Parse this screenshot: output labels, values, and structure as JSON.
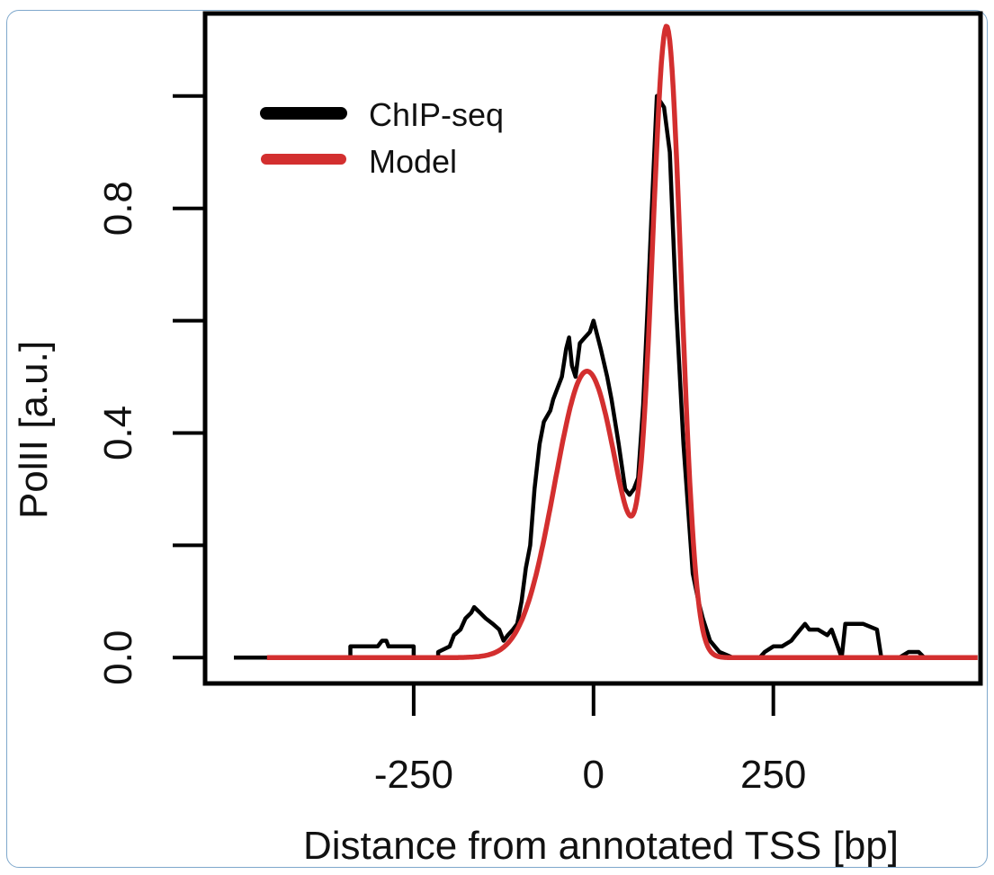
{
  "chart_data": {
    "type": "line",
    "title": "",
    "xlabel": "Distance from annotated TSS [bp]",
    "ylabel": "PolII [a.u.]",
    "xlim": [
      -540,
      538
    ],
    "ylim": [
      -0.046,
      1.147
    ],
    "x_ticks": [
      {
        "value": -250,
        "label": "-250"
      },
      {
        "value": 0,
        "label": "0"
      },
      {
        "value": 250,
        "label": "250"
      }
    ],
    "y_ticks": [
      {
        "value": 0.0,
        "label": "0.0"
      },
      {
        "value": 0.2,
        "label": ""
      },
      {
        "value": 0.4,
        "label": "0.4"
      },
      {
        "value": 0.6,
        "label": ""
      },
      {
        "value": 0.8,
        "label": "0.8"
      },
      {
        "value": 1.0,
        "label": ""
      }
    ],
    "grid": false,
    "legend": {
      "placement": "top-left"
    },
    "series": [
      {
        "name": "ChIP-seq",
        "color": "#000000",
        "step": true,
        "points": [
          [
            -500,
            0.0
          ],
          [
            -338,
            0.0
          ],
          [
            -338,
            0.02
          ],
          [
            -300,
            0.02
          ],
          [
            -294,
            0.03
          ],
          [
            -288,
            0.03
          ],
          [
            -285,
            0.02
          ],
          [
            -250,
            0.02
          ],
          [
            -250,
            0.0
          ],
          [
            -216,
            0.0
          ],
          [
            -216,
            0.01
          ],
          [
            -200,
            0.02
          ],
          [
            -194,
            0.04
          ],
          [
            -185,
            0.05
          ],
          [
            -178,
            0.07
          ],
          [
            -170,
            0.08
          ],
          [
            -166,
            0.09
          ],
          [
            -158,
            0.08
          ],
          [
            -150,
            0.07
          ],
          [
            -140,
            0.06
          ],
          [
            -131,
            0.05
          ],
          [
            -125,
            0.03
          ],
          [
            -119,
            0.04
          ],
          [
            -112,
            0.05
          ],
          [
            -106,
            0.06
          ],
          [
            -100,
            0.1
          ],
          [
            -94,
            0.16
          ],
          [
            -88,
            0.2
          ],
          [
            -82,
            0.3
          ],
          [
            -75,
            0.38
          ],
          [
            -69,
            0.42
          ],
          [
            -60,
            0.44
          ],
          [
            -56,
            0.46
          ],
          [
            -44,
            0.5
          ],
          [
            -38,
            0.55
          ],
          [
            -34,
            0.57
          ],
          [
            -30,
            0.52
          ],
          [
            -25,
            0.5
          ],
          [
            -19,
            0.56
          ],
          [
            -12,
            0.57
          ],
          [
            -5,
            0.58
          ],
          [
            0,
            0.6
          ],
          [
            6,
            0.57
          ],
          [
            10,
            0.55
          ],
          [
            19,
            0.5
          ],
          [
            25,
            0.46
          ],
          [
            35,
            0.38
          ],
          [
            44,
            0.3
          ],
          [
            50,
            0.29
          ],
          [
            56,
            0.3
          ],
          [
            62,
            0.32
          ],
          [
            69,
            0.45
          ],
          [
            75,
            0.62
          ],
          [
            81,
            0.8
          ],
          [
            88,
            1.0
          ],
          [
            98,
            0.98
          ],
          [
            106,
            0.9
          ],
          [
            115,
            0.62
          ],
          [
            125,
            0.38
          ],
          [
            138,
            0.15
          ],
          [
            146,
            0.1
          ],
          [
            152,
            0.07
          ],
          [
            162,
            0.03
          ],
          [
            175,
            0.01
          ],
          [
            194,
            0.0
          ],
          [
            231,
            0.0
          ],
          [
            238,
            0.01
          ],
          [
            250,
            0.02
          ],
          [
            262,
            0.02
          ],
          [
            275,
            0.03
          ],
          [
            281,
            0.04
          ],
          [
            294,
            0.06
          ],
          [
            300,
            0.05
          ],
          [
            312,
            0.05
          ],
          [
            325,
            0.04
          ],
          [
            331,
            0.05
          ],
          [
            345,
            0.0
          ],
          [
            350,
            0.06
          ],
          [
            375,
            0.06
          ],
          [
            394,
            0.05
          ],
          [
            400,
            0.0
          ],
          [
            425,
            0.0
          ],
          [
            438,
            0.01
          ],
          [
            452,
            0.01
          ],
          [
            460,
            0.0
          ]
        ]
      },
      {
        "name": "Model",
        "color": "#d32f2f",
        "components": [
          {
            "center_bp": -9,
            "amplitude": 0.51,
            "sigma_bp": 45
          },
          {
            "center_bp": 102,
            "amplitude": 1.1,
            "sigma_bp": 20
          }
        ],
        "x_range": [
          -454,
          534
        ],
        "peaks": [
          [
            -9,
            0.51
          ],
          [
            102,
            1.1
          ]
        ],
        "trough": [
          59,
          0.22
        ]
      }
    ]
  }
}
